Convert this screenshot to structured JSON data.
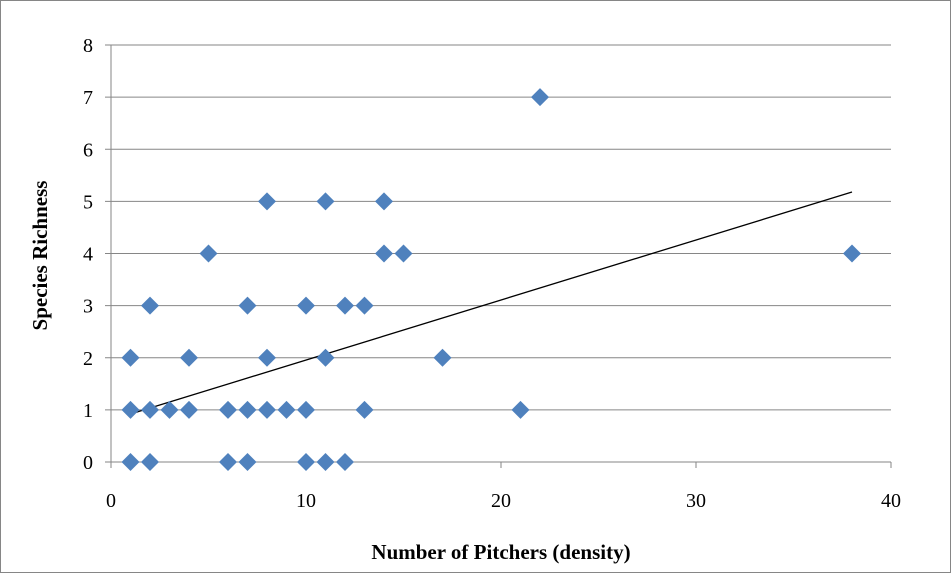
{
  "chart_data": {
    "type": "scatter",
    "title": "",
    "xlabel": "Number of Pitchers (density)",
    "ylabel": "Species Richness",
    "xlim": [
      0,
      40
    ],
    "ylim": [
      0,
      8
    ],
    "x_ticks": [
      0,
      10,
      20,
      30,
      40
    ],
    "y_ticks": [
      0,
      1,
      2,
      3,
      4,
      5,
      6,
      7,
      8
    ],
    "grid": "horizontal",
    "legend": "none",
    "marker": "diamond",
    "colors": {
      "marker": "#4F81BD",
      "trendline": "#000000",
      "grid": "#868686"
    },
    "points": [
      [
        1,
        0
      ],
      [
        2,
        0
      ],
      [
        6,
        0
      ],
      [
        7,
        0
      ],
      [
        10,
        0
      ],
      [
        11,
        0
      ],
      [
        12,
        0
      ],
      [
        1,
        1
      ],
      [
        2,
        1
      ],
      [
        3,
        1
      ],
      [
        4,
        1
      ],
      [
        6,
        1
      ],
      [
        7,
        1
      ],
      [
        8,
        1
      ],
      [
        9,
        1
      ],
      [
        10,
        1
      ],
      [
        13,
        1
      ],
      [
        21,
        1
      ],
      [
        1,
        2
      ],
      [
        4,
        2
      ],
      [
        8,
        2
      ],
      [
        11,
        2
      ],
      [
        17,
        2
      ],
      [
        2,
        3
      ],
      [
        7,
        3
      ],
      [
        10,
        3
      ],
      [
        12,
        3
      ],
      [
        13,
        3
      ],
      [
        5,
        4
      ],
      [
        14,
        4
      ],
      [
        15,
        4
      ],
      [
        38,
        4
      ],
      [
        8,
        5
      ],
      [
        11,
        5
      ],
      [
        14,
        5
      ],
      [
        22,
        7
      ]
    ],
    "trendline": {
      "type": "linear",
      "x": [
        1,
        38
      ],
      "y": [
        0.92,
        5.18
      ]
    }
  }
}
